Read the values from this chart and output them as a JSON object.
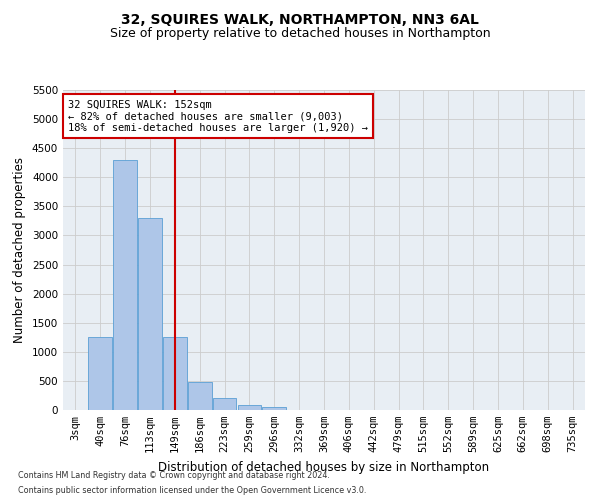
{
  "title1": "32, SQUIRES WALK, NORTHAMPTON, NN3 6AL",
  "title2": "Size of property relative to detached houses in Northampton",
  "xlabel": "Distribution of detached houses by size in Northampton",
  "ylabel": "Number of detached properties",
  "footer1": "Contains HM Land Registry data © Crown copyright and database right 2024.",
  "footer2": "Contains public sector information licensed under the Open Government Licence v3.0.",
  "annotation_line1": "32 SQUIRES WALK: 152sqm",
  "annotation_line2": "← 82% of detached houses are smaller (9,003)",
  "annotation_line3": "18% of semi-detached houses are larger (1,920) →",
  "bar_labels": [
    "3sqm",
    "40sqm",
    "76sqm",
    "113sqm",
    "149sqm",
    "186sqm",
    "223sqm",
    "259sqm",
    "296sqm",
    "332sqm",
    "369sqm",
    "406sqm",
    "442sqm",
    "479sqm",
    "515sqm",
    "552sqm",
    "589sqm",
    "625sqm",
    "662sqm",
    "698sqm",
    "735sqm"
  ],
  "bar_values": [
    0,
    1250,
    4300,
    3300,
    1250,
    480,
    200,
    90,
    60,
    0,
    0,
    0,
    0,
    0,
    0,
    0,
    0,
    0,
    0,
    0,
    0
  ],
  "bar_color": "#aec6e8",
  "bar_edge_color": "#5a9fd4",
  "vline_color": "#cc0000",
  "vline_index": 4,
  "ylim": [
    0,
    5500
  ],
  "yticks": [
    0,
    500,
    1000,
    1500,
    2000,
    2500,
    3000,
    3500,
    4000,
    4500,
    5000,
    5500
  ],
  "grid_color": "#cccccc",
  "bg_color": "#e8eef4",
  "annotation_box_color": "#cc0000",
  "title1_fontsize": 10,
  "title2_fontsize": 9,
  "xlabel_fontsize": 8.5,
  "ylabel_fontsize": 8.5,
  "tick_fontsize": 7.5,
  "ann_fontsize": 7.5,
  "footer_fontsize": 5.8
}
